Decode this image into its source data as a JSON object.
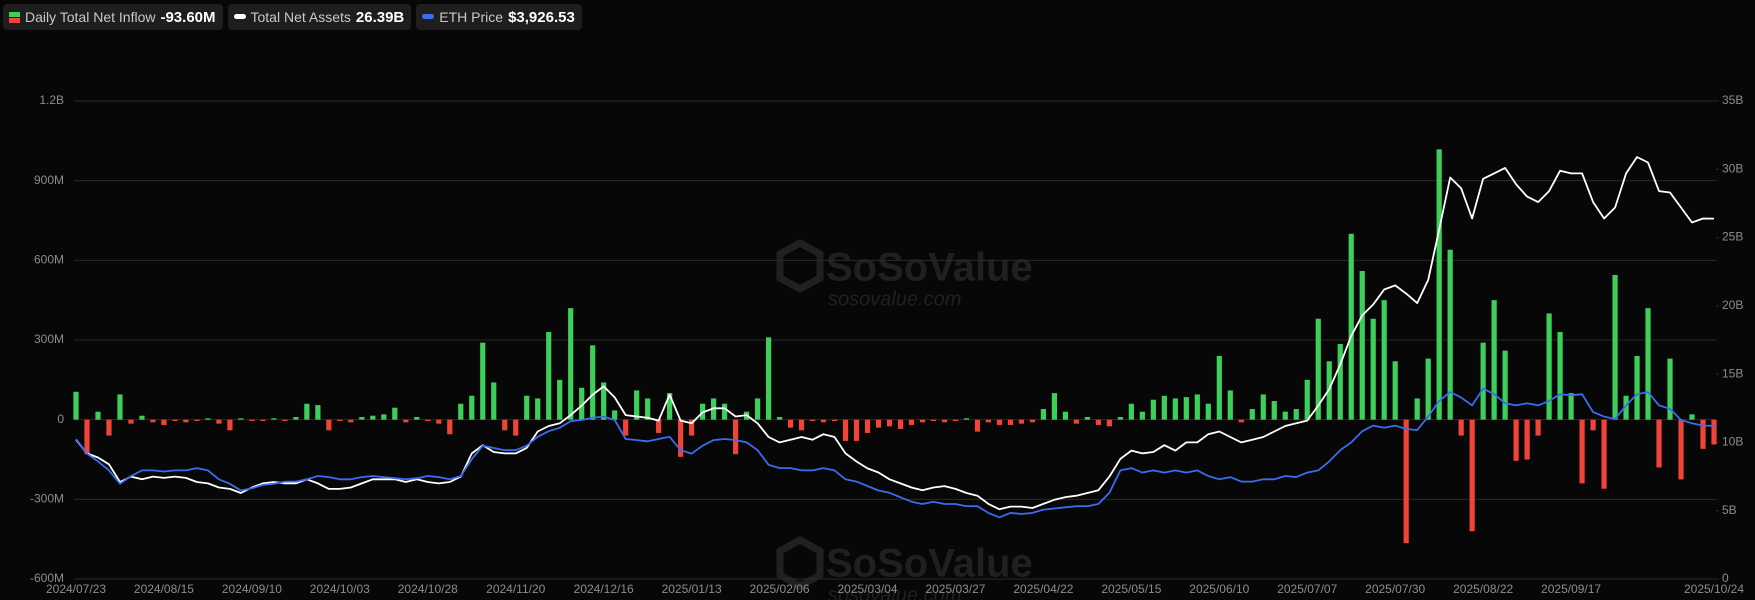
{
  "chart_data": {
    "type": "combo",
    "watermark": {
      "brand": "SoSoValue",
      "site": "sosovalue.com"
    },
    "categories": [
      "2024/07/23",
      null,
      null,
      null,
      null,
      null,
      null,
      null,
      "2024/08/15",
      null,
      null,
      null,
      null,
      null,
      null,
      null,
      "2024/09/10",
      null,
      null,
      null,
      null,
      null,
      null,
      null,
      "2024/10/03",
      null,
      null,
      null,
      null,
      null,
      null,
      null,
      "2024/10/28",
      null,
      null,
      null,
      null,
      null,
      null,
      null,
      "2024/11/20",
      null,
      null,
      null,
      null,
      null,
      null,
      null,
      "2024/12/16",
      null,
      null,
      null,
      null,
      null,
      null,
      null,
      "2025/01/13",
      null,
      null,
      null,
      null,
      null,
      null,
      null,
      "2025/02/06",
      null,
      null,
      null,
      null,
      null,
      null,
      null,
      "2025/03/04",
      null,
      null,
      null,
      null,
      null,
      null,
      null,
      "2025/03/27",
      null,
      null,
      null,
      null,
      null,
      null,
      null,
      "2025/04/22",
      null,
      null,
      null,
      null,
      null,
      null,
      null,
      "2025/05/15",
      null,
      null,
      null,
      null,
      null,
      null,
      null,
      "2025/06/10",
      null,
      null,
      null,
      null,
      null,
      null,
      null,
      "2025/07/07",
      null,
      null,
      null,
      null,
      null,
      null,
      null,
      "2025/07/30",
      null,
      null,
      null,
      null,
      null,
      null,
      null,
      "2025/08/22",
      null,
      null,
      null,
      null,
      null,
      null,
      null,
      "2025/09/17",
      null,
      null,
      null,
      null,
      null,
      null,
      null,
      null,
      null,
      null,
      null,
      null,
      "2025/10/24"
    ],
    "series": [
      {
        "name": "Daily Total Net Inflow",
        "type": "bar",
        "axis": "y",
        "latest_label": "-93.60M",
        "colors": {
          "positive": "#3ecf5a",
          "negative": "#f04438"
        },
        "values": [
          105,
          -130,
          30,
          -60,
          95,
          -15,
          15,
          -10,
          -20,
          -5,
          -10,
          -5,
          5,
          -15,
          -40,
          5,
          -5,
          -5,
          5,
          -5,
          10,
          60,
          55,
          -40,
          -5,
          -10,
          10,
          15,
          20,
          45,
          -10,
          10,
          -5,
          -15,
          -55,
          60,
          90,
          290,
          140,
          -40,
          -60,
          90,
          80,
          330,
          150,
          420,
          120,
          280,
          140,
          35,
          -60,
          110,
          80,
          -50,
          100,
          -140,
          -60,
          60,
          80,
          60,
          -130,
          30,
          80,
          310,
          10,
          -30,
          -40,
          -5,
          -10,
          -5,
          -80,
          -80,
          -50,
          -30,
          -25,
          -35,
          -20,
          -10,
          -5,
          -10,
          -5,
          5,
          -45,
          -10,
          -20,
          -20,
          -15,
          -10,
          40,
          100,
          30,
          -15,
          10,
          -20,
          -25,
          10,
          60,
          30,
          75,
          90,
          80,
          85,
          95,
          60,
          240,
          110,
          -10,
          40,
          95,
          70,
          30,
          40,
          150,
          380,
          220,
          285,
          700,
          560,
          380,
          450,
          220,
          -465,
          80,
          230,
          1018,
          640,
          -60,
          -420,
          290,
          450,
          260,
          -155,
          -150,
          -60,
          400,
          330,
          100,
          -240,
          -40,
          -260,
          545,
          90,
          240,
          420,
          -180,
          230,
          -225,
          20,
          -110,
          -93.6
        ]
      },
      {
        "name": "Total Net Assets",
        "type": "line",
        "axis": "y2",
        "latest_label": "26.39B",
        "color": "#ffffff",
        "values": [
          10.2,
          9.2,
          8.9,
          8.4,
          7.1,
          7.5,
          7.3,
          7.5,
          7.4,
          7.5,
          7.4,
          7.1,
          7.0,
          6.7,
          6.6,
          6.3,
          6.7,
          7.0,
          7.1,
          7.0,
          7.0,
          7.3,
          7.0,
          6.6,
          6.6,
          6.7,
          7.0,
          7.3,
          7.3,
          7.3,
          7.1,
          7.3,
          7.1,
          7.0,
          7.1,
          7.5,
          9.2,
          9.8,
          9.3,
          9.2,
          9.2,
          9.6,
          10.8,
          11.2,
          11.4,
          12.0,
          12.7,
          13.5,
          14.1,
          13.3,
          12.0,
          11.9,
          11.8,
          11.6,
          13.5,
          11.6,
          11.4,
          12.2,
          12.5,
          12.5,
          11.9,
          12.0,
          11.4,
          10.4,
          10.0,
          10.2,
          10.4,
          10.2,
          10.6,
          10.4,
          9.2,
          8.6,
          8.1,
          7.8,
          7.3,
          7.0,
          6.7,
          6.5,
          6.7,
          6.8,
          6.6,
          6.3,
          6.1,
          5.5,
          5.1,
          5.3,
          5.3,
          5.2,
          5.5,
          5.8,
          6.0,
          6.1,
          6.3,
          6.5,
          7.5,
          8.8,
          9.4,
          9.2,
          9.3,
          9.8,
          9.4,
          10.0,
          10.0,
          10.6,
          10.8,
          10.4,
          10.0,
          10.2,
          10.4,
          10.8,
          11.2,
          11.4,
          11.6,
          12.7,
          13.9,
          15.7,
          17.8,
          19.3,
          20.1,
          21.2,
          21.5,
          20.9,
          20.2,
          21.9,
          25.6,
          29.4,
          28.6,
          26.4,
          29.3,
          29.7,
          30.1,
          28.9,
          28.0,
          27.6,
          28.4,
          29.9,
          29.7,
          29.7,
          27.6,
          26.4,
          27.2,
          29.7,
          30.9,
          30.5,
          28.4,
          28.3,
          27.2,
          26.1,
          26.4,
          26.39
        ]
      },
      {
        "name": "ETH Price",
        "type": "line",
        "axis": "y3",
        "latest_label": "$3,926.53",
        "color": "#3b6cf0",
        "values": [
          3588,
          3214,
          3014,
          2784,
          2440,
          2640,
          2784,
          2784,
          2755,
          2784,
          2784,
          2841,
          2784,
          2554,
          2440,
          2267,
          2325,
          2411,
          2440,
          2497,
          2497,
          2554,
          2640,
          2612,
          2554,
          2554,
          2612,
          2640,
          2612,
          2583,
          2554,
          2583,
          2640,
          2612,
          2554,
          2640,
          3071,
          3415,
          3358,
          3301,
          3301,
          3415,
          3645,
          3788,
          3875,
          4047,
          4075,
          4133,
          4162,
          4075,
          3588,
          3559,
          3530,
          3588,
          3645,
          3301,
          3214,
          3415,
          3559,
          3588,
          3559,
          3501,
          3301,
          2927,
          2841,
          2841,
          2784,
          2784,
          2841,
          2784,
          2554,
          2497,
          2382,
          2267,
          2210,
          2095,
          1980,
          1923,
          1980,
          1923,
          1923,
          1866,
          1866,
          1693,
          1578,
          1693,
          1665,
          1693,
          1779,
          1808,
          1837,
          1866,
          1866,
          1923,
          2210,
          2784,
          2841,
          2727,
          2784,
          2727,
          2784,
          2727,
          2784,
          2640,
          2554,
          2612,
          2497,
          2497,
          2554,
          2554,
          2640,
          2612,
          2727,
          2784,
          3014,
          3301,
          3501,
          3788,
          3932,
          3875,
          3932,
          3846,
          3817,
          4162,
          4563,
          4793,
          4649,
          4449,
          4879,
          4736,
          4506,
          4449,
          4506,
          4449,
          4563,
          4736,
          4707,
          4736,
          4276,
          4162,
          4104,
          4449,
          4736,
          4793,
          4449,
          4362,
          4075,
          3989,
          3932,
          3926.53
        ]
      }
    ],
    "ylim": [
      -600,
      1200
    ],
    "yticks": [
      {
        "value": -600,
        "label": "-600M"
      },
      {
        "value": -300,
        "label": "-300M"
      },
      0,
      {
        "value": 300,
        "label": "300M"
      },
      {
        "value": 600,
        "label": "600M"
      },
      {
        "value": 900,
        "label": "900M"
      },
      {
        "value": 1200,
        "label": "1.2B"
      }
    ],
    "y2lim": [
      0,
      35
    ],
    "y2ticks": [
      0,
      {
        "value": 5,
        "label": "5B"
      },
      {
        "value": 10,
        "label": "10B"
      },
      {
        "value": 15,
        "label": "15B"
      },
      {
        "value": 20,
        "label": "20B"
      },
      {
        "value": 25,
        "label": "25B"
      },
      {
        "value": 30,
        "label": "30B"
      },
      {
        "value": 35,
        "label": "35B"
      }
    ],
    "y3lim": [
      0,
      12250
    ],
    "grid": true
  }
}
